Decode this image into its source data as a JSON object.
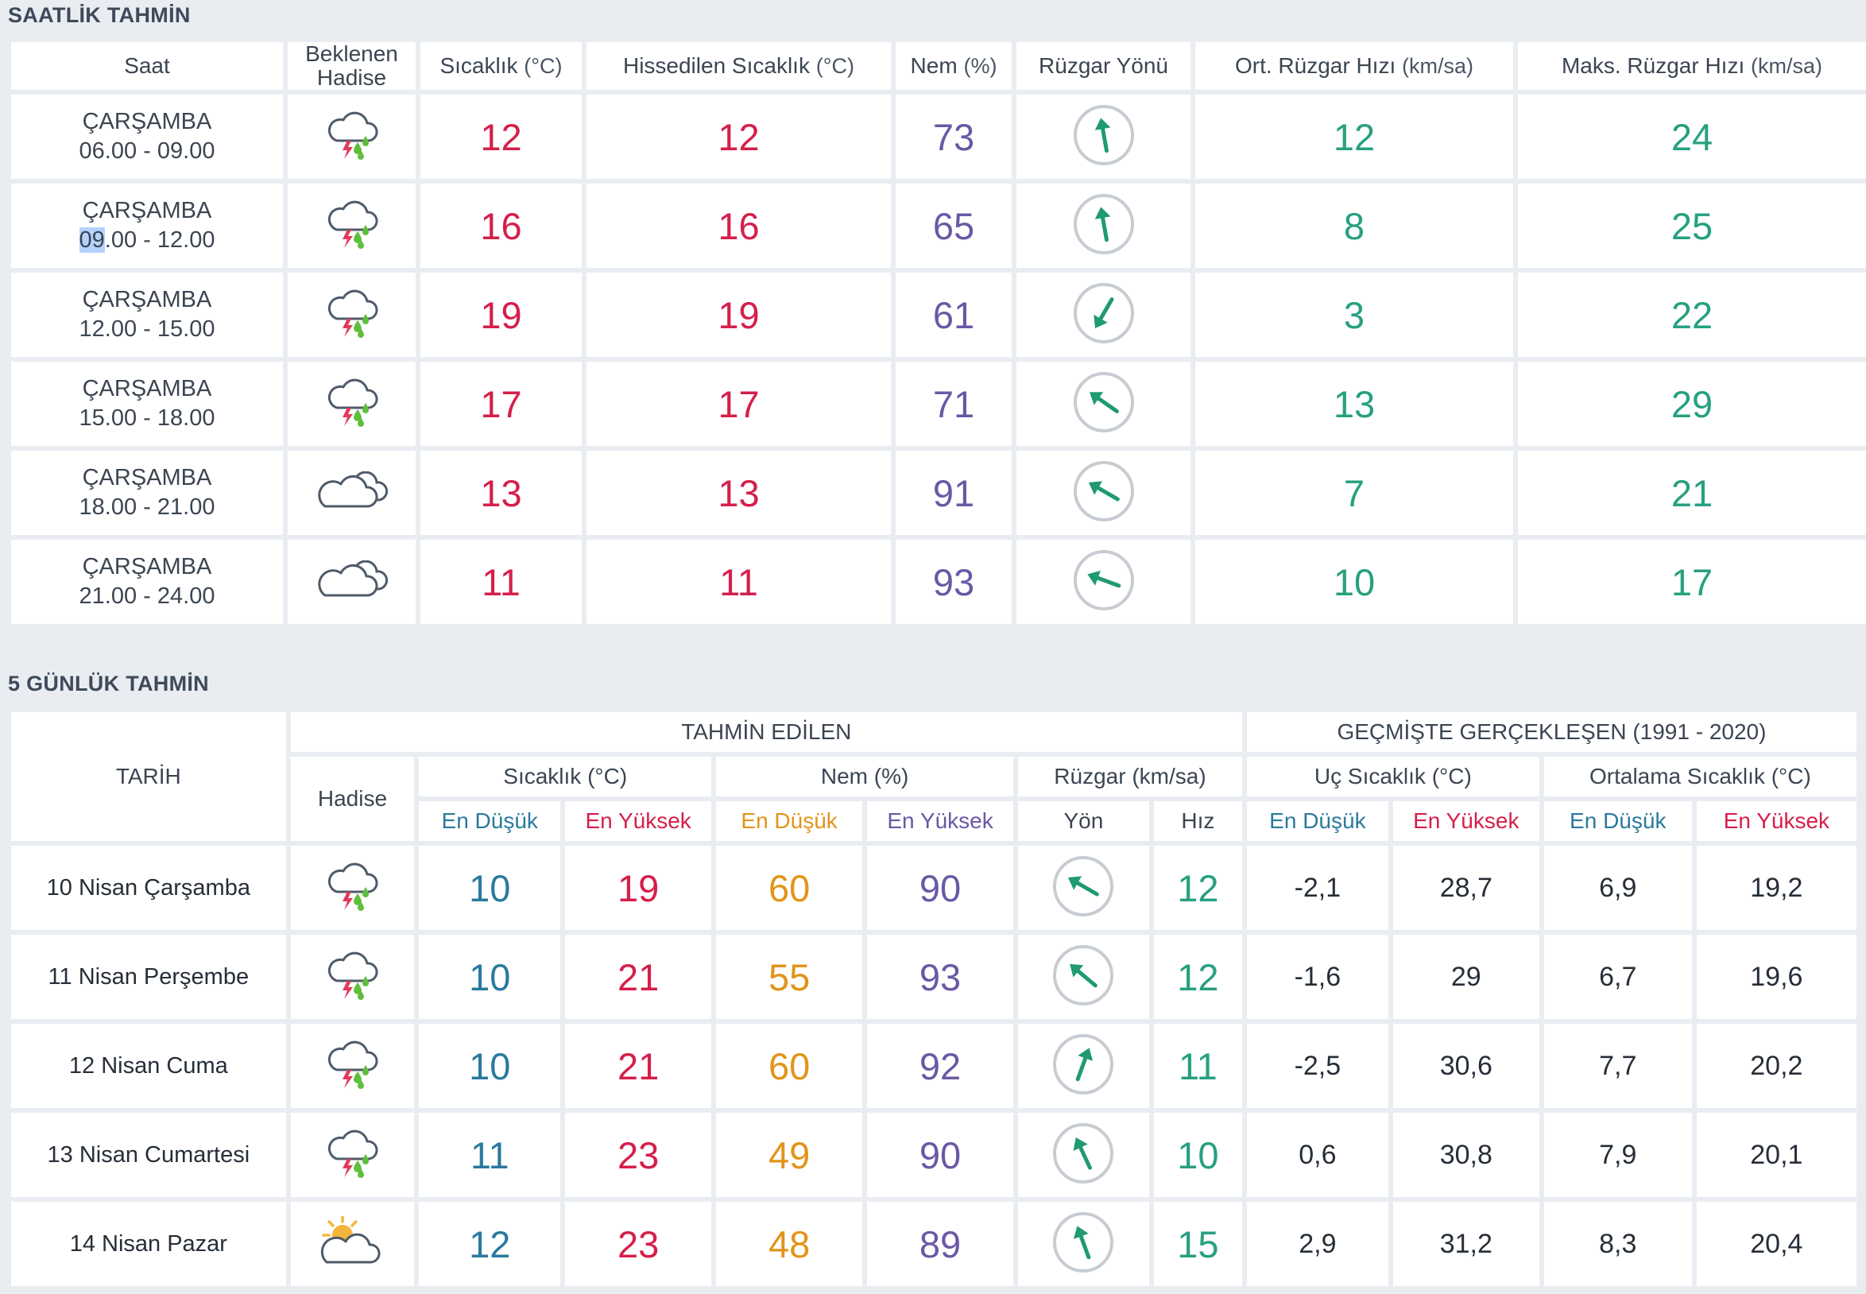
{
  "hourly": {
    "title": "SAATLİK TAHMİN",
    "headers": {
      "saat": "Saat",
      "hadise_line1": "Beklenen",
      "hadise_line2": "Hadise",
      "sicaklik": "Sıcaklık",
      "sicaklik_unit": "(°C)",
      "hissedilen": "Hissedilen Sıcaklık",
      "hissedilen_unit": "(°C)",
      "nem": "Nem",
      "nem_unit": "(%)",
      "ruzgar_yonu": "Rüzgar Yönü",
      "ort_ruzgar": "Ort. Rüzgar Hızı",
      "ort_ruzgar_unit": "(km/sa)",
      "maks_ruzgar": "Maks. Rüzgar Hızı",
      "maks_ruzgar_unit": "(km/sa)"
    },
    "rows": [
      {
        "day": "ÇARŞAMBA",
        "start": "06",
        "end": ".00 - 09.00",
        "icon": "thunderstorm-rain-icon",
        "temp": "12",
        "feels": "12",
        "humidity": "73",
        "wind_dir_deg": 170,
        "wind_avg": "12",
        "wind_max": "24"
      },
      {
        "day": "ÇARŞAMBA",
        "start": "09",
        "end": ".00 - 12.00",
        "icon": "thunderstorm-rain-icon",
        "temp": "16",
        "feels": "16",
        "humidity": "65",
        "wind_dir_deg": 170,
        "wind_avg": "8",
        "wind_max": "25"
      },
      {
        "day": "ÇARŞAMBA",
        "start": "12",
        "end": ".00 - 15.00",
        "icon": "thunderstorm-rain-icon",
        "temp": "19",
        "feels": "19",
        "humidity": "61",
        "wind_dir_deg": 30,
        "wind_avg": "3",
        "wind_max": "22"
      },
      {
        "day": "ÇARŞAMBA",
        "start": "15",
        "end": ".00 - 18.00",
        "icon": "thunderstorm-rain-icon",
        "temp": "17",
        "feels": "17",
        "humidity": "71",
        "wind_dir_deg": 125,
        "wind_avg": "13",
        "wind_max": "29"
      },
      {
        "day": "ÇARŞAMBA",
        "start": "18",
        "end": ".00 - 21.00",
        "icon": "cloud-icon",
        "temp": "13",
        "feels": "13",
        "humidity": "91",
        "wind_dir_deg": 120,
        "wind_avg": "7",
        "wind_max": "21"
      },
      {
        "day": "ÇARŞAMBA",
        "start": "21",
        "end": ".00 - 24.00",
        "icon": "cloud-icon",
        "temp": "11",
        "feels": "11",
        "humidity": "93",
        "wind_dir_deg": 110,
        "wind_avg": "10",
        "wind_max": "17"
      }
    ],
    "selected_text": "09"
  },
  "daily": {
    "title": "5 GÜNLÜK TAHMİN",
    "headers": {
      "tarih": "TARİH",
      "tahmin_edilen": "TAHMİN EDİLEN",
      "gecmiste": "GEÇMİŞTE GERÇEKLEŞEN (1991 - 2020)",
      "hadise": "Hadise",
      "sicaklik": "Sıcaklık (°C)",
      "nem": "Nem (%)",
      "ruzgar": "Rüzgar (km/sa)",
      "uc_sicaklik": "Uç Sıcaklık (°C)",
      "ortalama_sicaklik": "Ortalama Sıcaklık (°C)",
      "en_dusuk": "En Düşük",
      "en_yuksek": "En Yüksek",
      "yon": "Yön",
      "hiz": "Hız"
    },
    "rows": [
      {
        "date": "10 Nisan Çarşamba",
        "icon": "thunderstorm-rain-icon",
        "temp_min": "10",
        "temp_max": "19",
        "hum_min": "60",
        "hum_max": "90",
        "wind_dir_deg": 120,
        "wind_speed": "12",
        "extreme_min": "-2,1",
        "extreme_max": "28,7",
        "avg_min": "6,9",
        "avg_max": "19,2"
      },
      {
        "date": "11 Nisan Perşembe",
        "icon": "thunderstorm-rain-icon",
        "temp_min": "10",
        "temp_max": "21",
        "hum_min": "55",
        "hum_max": "93",
        "wind_dir_deg": 130,
        "wind_speed": "12",
        "extreme_min": "-1,6",
        "extreme_max": "29",
        "avg_min": "6,7",
        "avg_max": "19,6"
      },
      {
        "date": "12 Nisan Cuma",
        "icon": "thunderstorm-rain-icon",
        "temp_min": "10",
        "temp_max": "21",
        "hum_min": "60",
        "hum_max": "92",
        "wind_dir_deg": 200,
        "wind_speed": "11",
        "extreme_min": "-2,5",
        "extreme_max": "30,6",
        "avg_min": "7,7",
        "avg_max": "20,2"
      },
      {
        "date": "13 Nisan Cumartesi",
        "icon": "thunderstorm-rain-icon",
        "temp_min": "11",
        "temp_max": "23",
        "hum_min": "49",
        "hum_max": "90",
        "wind_dir_deg": 155,
        "wind_speed": "10",
        "extreme_min": "0,6",
        "extreme_max": "30,8",
        "avg_min": "7,9",
        "avg_max": "20,1"
      },
      {
        "date": "14 Nisan Pazar",
        "icon": "partly-cloudy-sun-icon",
        "temp_min": "12",
        "temp_max": "23",
        "hum_min": "48",
        "hum_max": "89",
        "wind_dir_deg": 160,
        "wind_speed": "15",
        "extreme_min": "2,9",
        "extreme_max": "31,2",
        "avg_min": "8,3",
        "avg_max": "20,4"
      }
    ]
  },
  "colors": {
    "red": "#d51f4a",
    "purple": "#6a58a5",
    "green": "#27a080",
    "blue": "#2a7a9e",
    "orange": "#e29419",
    "compass_ring": "#c7ccd3",
    "compass_arrow": "#1f9a73",
    "rain_green": "#5fbf3c",
    "bolt_red": "#e23a5a",
    "sun_yellow": "#f4b63a"
  }
}
